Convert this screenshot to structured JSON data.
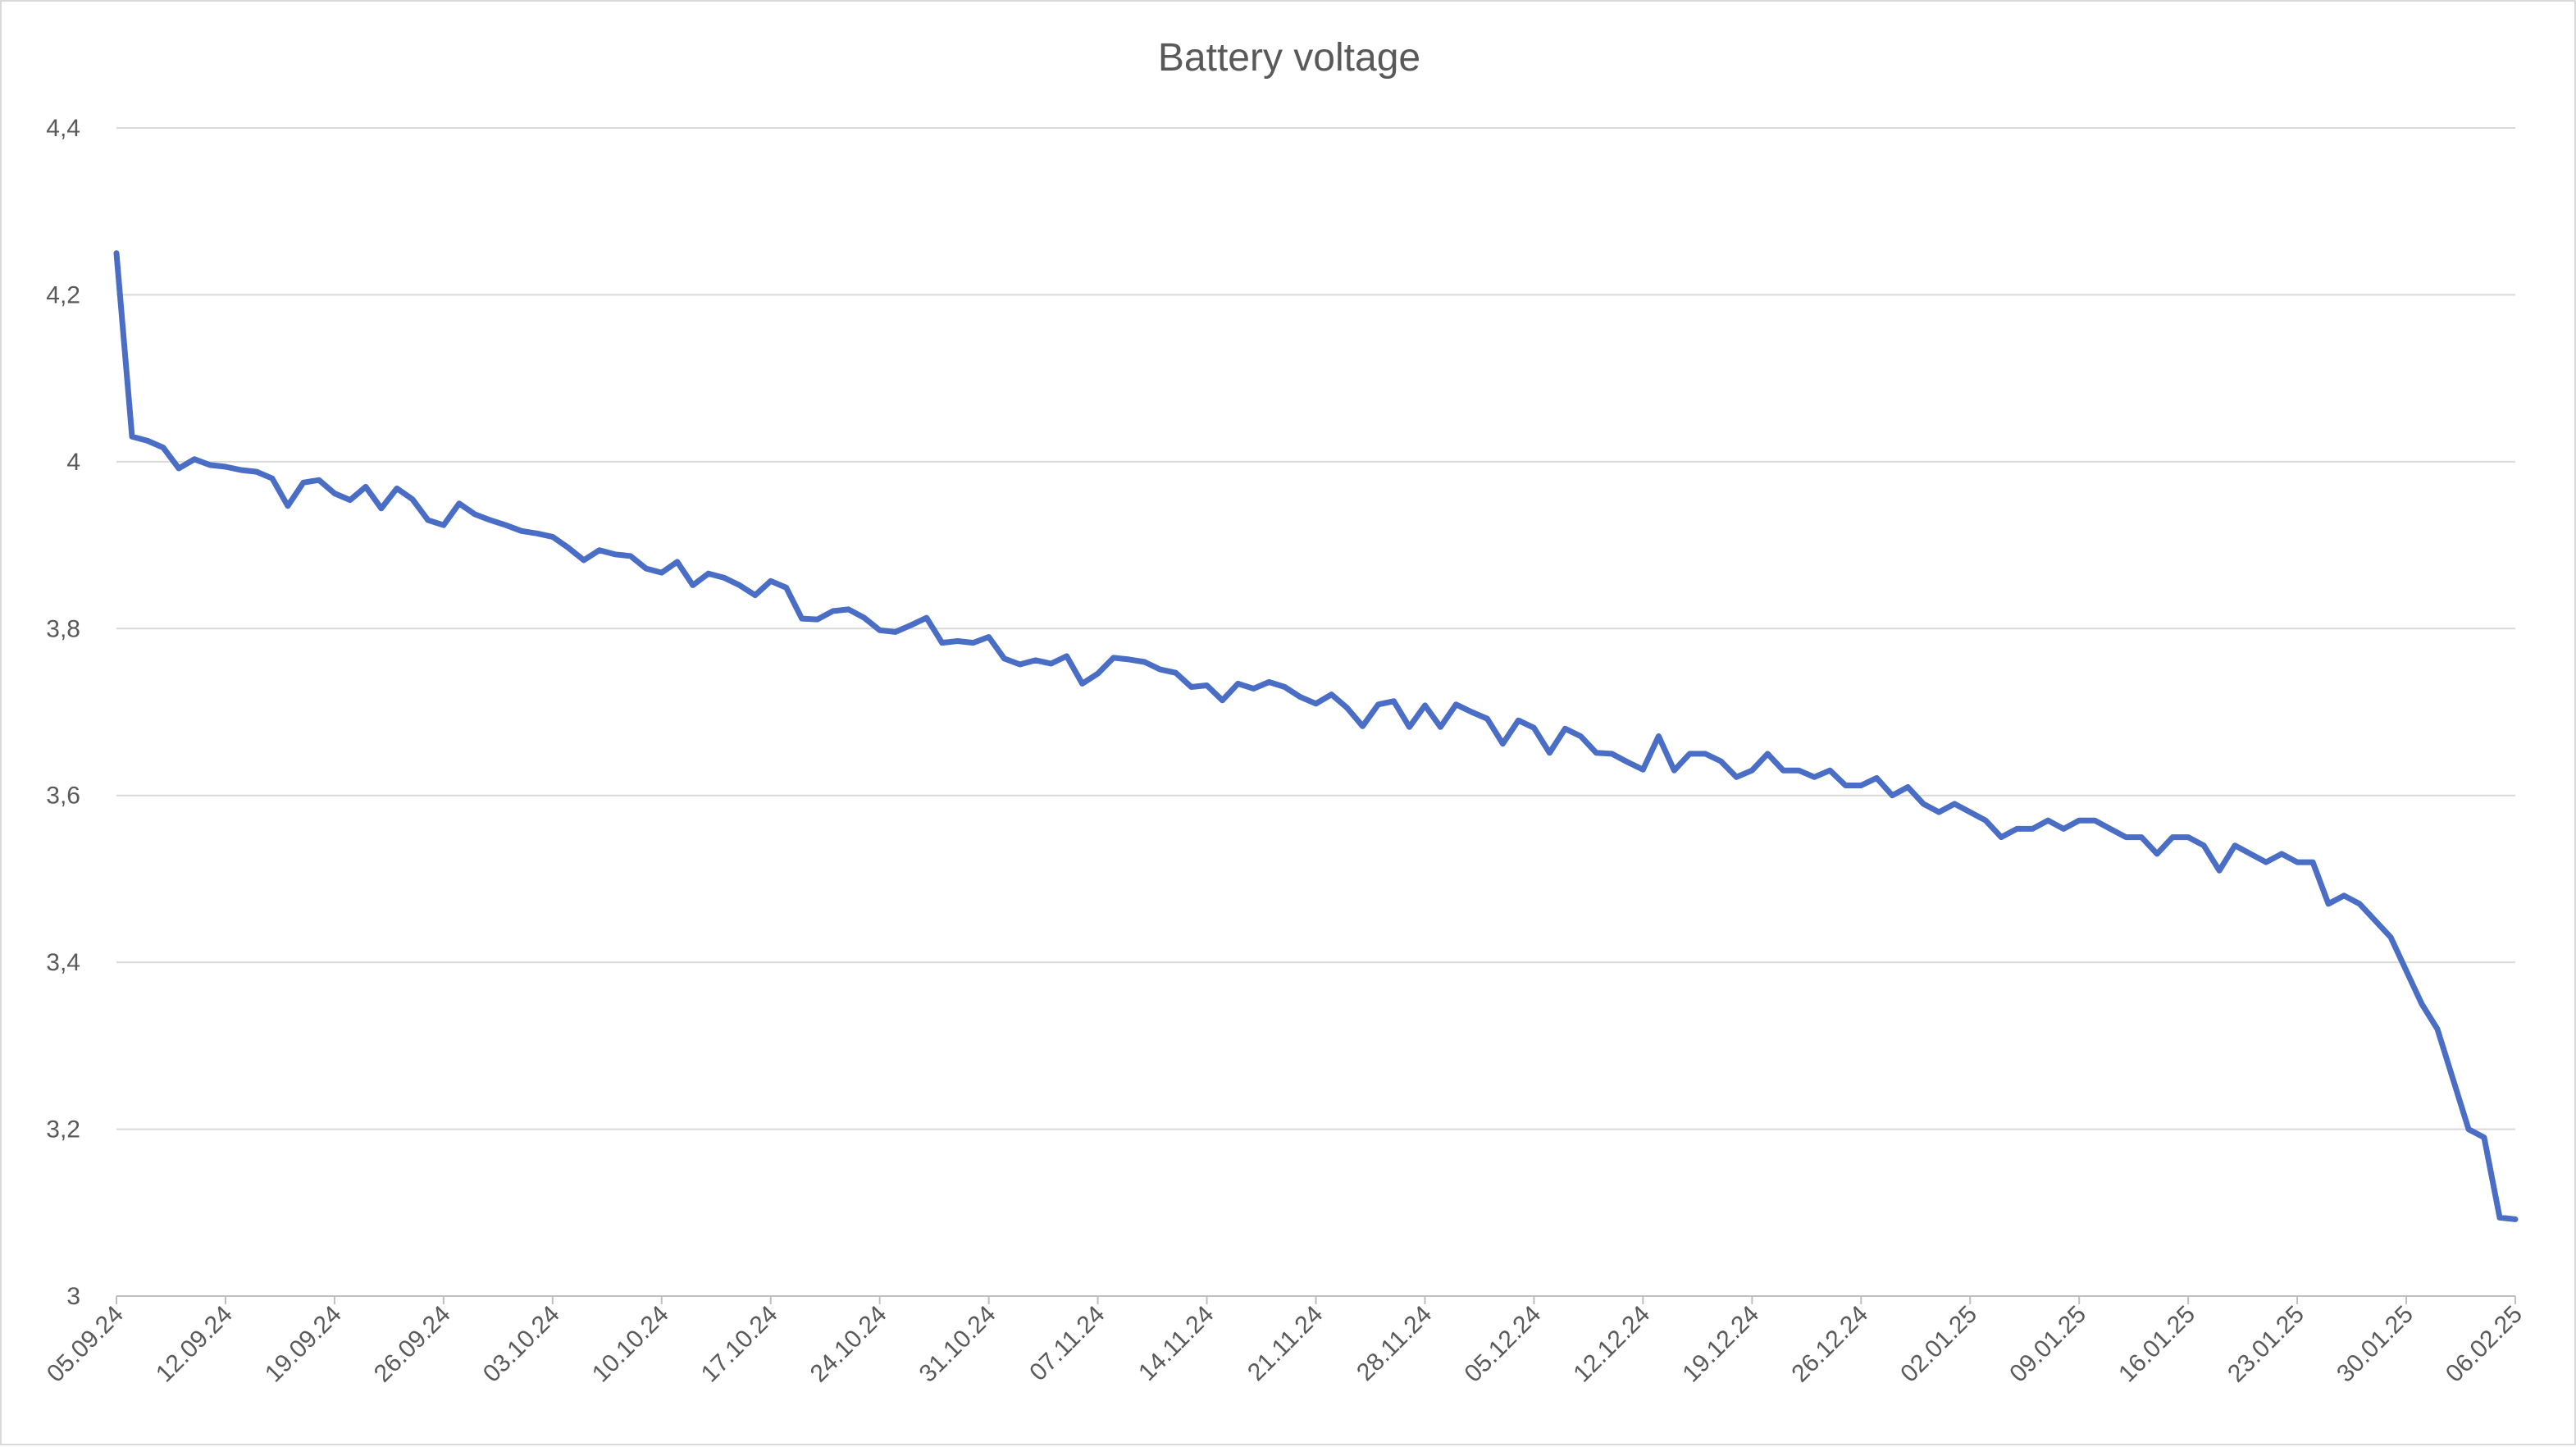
{
  "chart_data": {
    "type": "line",
    "title": "Battery voltage",
    "xlabel": "",
    "ylabel": "",
    "ylim": [
      3,
      4.4
    ],
    "yticks": [
      "3",
      "3,2",
      "3,4",
      "3,6",
      "3,8",
      "4",
      "4,2",
      "4,4"
    ],
    "ytick_values": [
      3.0,
      3.2,
      3.4,
      3.6,
      3.8,
      4.0,
      4.2,
      4.4
    ],
    "xlim": [
      "2024-09-05",
      "2025-02-06"
    ],
    "xticks": [
      "05.09.24",
      "12.09.24",
      "19.09.24",
      "26.09.24",
      "03.10.24",
      "10.10.24",
      "17.10.24",
      "24.10.24",
      "31.10.24",
      "07.11.24",
      "14.11.24",
      "21.11.24",
      "28.11.24",
      "05.12.24",
      "12.12.24",
      "19.12.24",
      "26.12.24",
      "02.01.25",
      "09.01.25",
      "16.01.25",
      "23.01.25",
      "30.01.25",
      "06.02.25"
    ],
    "xtick_dates": [
      "2024-09-05",
      "2024-09-12",
      "2024-09-19",
      "2024-09-26",
      "2024-10-03",
      "2024-10-10",
      "2024-10-17",
      "2024-10-24",
      "2024-10-31",
      "2024-11-07",
      "2024-11-14",
      "2024-11-21",
      "2024-11-28",
      "2024-12-05",
      "2024-12-12",
      "2024-12-19",
      "2024-12-26",
      "2025-01-02",
      "2025-01-09",
      "2025-01-16",
      "2025-01-23",
      "2025-01-30",
      "2025-02-06"
    ],
    "grid": true,
    "legend": "none",
    "series": [
      {
        "color": "#4a6ec5",
        "points": [
          [
            "2024-09-05",
            4.25
          ],
          [
            "2024-09-06",
            4.03
          ],
          [
            "2024-09-07",
            4.025
          ],
          [
            "2024-09-08",
            4.017
          ],
          [
            "2024-09-09",
            3.992
          ],
          [
            "2024-09-10",
            4.003
          ],
          [
            "2024-09-11",
            3.996
          ],
          [
            "2024-09-12",
            3.994
          ],
          [
            "2024-09-13",
            3.99
          ],
          [
            "2024-09-14",
            3.988
          ],
          [
            "2024-09-15",
            3.98
          ],
          [
            "2024-09-16",
            3.947
          ],
          [
            "2024-09-17",
            3.975
          ],
          [
            "2024-09-18",
            3.978
          ],
          [
            "2024-09-19",
            3.962
          ],
          [
            "2024-09-20",
            3.954
          ],
          [
            "2024-09-21",
            3.97
          ],
          [
            "2024-09-22",
            3.944
          ],
          [
            "2024-09-23",
            3.968
          ],
          [
            "2024-09-24",
            3.955
          ],
          [
            "2024-09-25",
            3.93
          ],
          [
            "2024-09-26",
            3.924
          ],
          [
            "2024-09-27",
            3.95
          ],
          [
            "2024-09-28",
            3.937
          ],
          [
            "2024-09-29",
            3.93
          ],
          [
            "2024-09-30",
            3.924
          ],
          [
            "2024-10-01",
            3.917
          ],
          [
            "2024-10-02",
            3.914
          ],
          [
            "2024-10-03",
            3.91
          ],
          [
            "2024-10-04",
            3.897
          ],
          [
            "2024-10-05",
            3.882
          ],
          [
            "2024-10-06",
            3.894
          ],
          [
            "2024-10-07",
            3.889
          ],
          [
            "2024-10-08",
            3.887
          ],
          [
            "2024-10-09",
            3.872
          ],
          [
            "2024-10-10",
            3.867
          ],
          [
            "2024-10-11",
            3.88
          ],
          [
            "2024-10-12",
            3.852
          ],
          [
            "2024-10-13",
            3.866
          ],
          [
            "2024-10-14",
            3.861
          ],
          [
            "2024-10-15",
            3.852
          ],
          [
            "2024-10-16",
            3.84
          ],
          [
            "2024-10-17",
            3.857
          ],
          [
            "2024-10-18",
            3.849
          ],
          [
            "2024-10-19",
            3.812
          ],
          [
            "2024-10-20",
            3.811
          ],
          [
            "2024-10-21",
            3.821
          ],
          [
            "2024-10-22",
            3.823
          ],
          [
            "2024-10-23",
            3.813
          ],
          [
            "2024-10-24",
            3.798
          ],
          [
            "2024-10-25",
            3.796
          ],
          [
            "2024-10-26",
            3.804
          ],
          [
            "2024-10-27",
            3.813
          ],
          [
            "2024-10-28",
            3.783
          ],
          [
            "2024-10-29",
            3.785
          ],
          [
            "2024-10-30",
            3.783
          ],
          [
            "2024-10-31",
            3.79
          ],
          [
            "2024-11-01",
            3.764
          ],
          [
            "2024-11-02",
            3.757
          ],
          [
            "2024-11-03",
            3.762
          ],
          [
            "2024-11-04",
            3.758
          ],
          [
            "2024-11-05",
            3.767
          ],
          [
            "2024-11-06",
            3.734
          ],
          [
            "2024-11-07",
            3.746
          ],
          [
            "2024-11-08",
            3.765
          ],
          [
            "2024-11-09",
            3.763
          ],
          [
            "2024-11-10",
            3.76
          ],
          [
            "2024-11-11",
            3.751
          ],
          [
            "2024-11-12",
            3.747
          ],
          [
            "2024-11-13",
            3.73
          ],
          [
            "2024-11-14",
            3.732
          ],
          [
            "2024-11-15",
            3.714
          ],
          [
            "2024-11-16",
            3.734
          ],
          [
            "2024-11-17",
            3.728
          ],
          [
            "2024-11-18",
            3.736
          ],
          [
            "2024-11-19",
            3.73
          ],
          [
            "2024-11-20",
            3.718
          ],
          [
            "2024-11-21",
            3.71
          ],
          [
            "2024-11-22",
            3.721
          ],
          [
            "2024-11-23",
            3.705
          ],
          [
            "2024-11-24",
            3.683
          ],
          [
            "2024-11-25",
            3.709
          ],
          [
            "2024-11-26",
            3.713
          ],
          [
            "2024-11-27",
            3.682
          ],
          [
            "2024-11-28",
            3.708
          ],
          [
            "2024-11-29",
            3.682
          ],
          [
            "2024-11-30",
            3.709
          ],
          [
            "2024-12-01",
            3.7
          ],
          [
            "2024-12-02",
            3.692
          ],
          [
            "2024-12-03",
            3.662
          ],
          [
            "2024-12-04",
            3.69
          ],
          [
            "2024-12-05",
            3.681
          ],
          [
            "2024-12-06",
            3.651
          ],
          [
            "2024-12-07",
            3.68
          ],
          [
            "2024-12-08",
            3.671
          ],
          [
            "2024-12-09",
            3.651
          ],
          [
            "2024-12-10",
            3.65
          ],
          [
            "2024-12-11",
            3.64
          ],
          [
            "2024-12-12",
            3.631
          ],
          [
            "2024-12-13",
            3.671
          ],
          [
            "2024-12-14",
            3.63
          ],
          [
            "2024-12-15",
            3.65
          ],
          [
            "2024-12-16",
            3.65
          ],
          [
            "2024-12-17",
            3.641
          ],
          [
            "2024-12-18",
            3.622
          ],
          [
            "2024-12-19",
            3.63
          ],
          [
            "2024-12-20",
            3.65
          ],
          [
            "2024-12-21",
            3.63
          ],
          [
            "2024-12-22",
            3.63
          ],
          [
            "2024-12-23",
            3.622
          ],
          [
            "2024-12-24",
            3.63
          ],
          [
            "2024-12-25",
            3.612
          ],
          [
            "2024-12-26",
            3.612
          ],
          [
            "2024-12-27",
            3.621
          ],
          [
            "2024-12-28",
            3.6
          ],
          [
            "2024-12-29",
            3.61
          ],
          [
            "2024-12-30",
            3.59
          ],
          [
            "2024-12-31",
            3.58
          ],
          [
            "2025-01-01",
            3.59
          ],
          [
            "2025-01-02",
            3.58
          ],
          [
            "2025-01-03",
            3.57
          ],
          [
            "2025-01-04",
            3.55
          ],
          [
            "2025-01-05",
            3.56
          ],
          [
            "2025-01-06",
            3.56
          ],
          [
            "2025-01-07",
            3.57
          ],
          [
            "2025-01-08",
            3.56
          ],
          [
            "2025-01-09",
            3.57
          ],
          [
            "2025-01-10",
            3.57
          ],
          [
            "2025-01-11",
            3.56
          ],
          [
            "2025-01-12",
            3.55
          ],
          [
            "2025-01-13",
            3.55
          ],
          [
            "2025-01-14",
            3.53
          ],
          [
            "2025-01-15",
            3.55
          ],
          [
            "2025-01-16",
            3.55
          ],
          [
            "2025-01-17",
            3.54
          ],
          [
            "2025-01-18",
            3.51
          ],
          [
            "2025-01-19",
            3.54
          ],
          [
            "2025-01-20",
            3.53
          ],
          [
            "2025-01-21",
            3.52
          ],
          [
            "2025-01-22",
            3.53
          ],
          [
            "2025-01-23",
            3.52
          ],
          [
            "2025-01-24",
            3.52
          ],
          [
            "2025-01-25",
            3.47
          ],
          [
            "2025-01-26",
            3.48
          ],
          [
            "2025-01-27",
            3.47
          ],
          [
            "2025-01-28",
            3.45
          ],
          [
            "2025-01-29",
            3.43
          ],
          [
            "2025-01-30",
            3.39
          ],
          [
            "2025-01-31",
            3.35
          ],
          [
            "2025-02-01",
            3.32
          ],
          [
            "2025-02-02",
            3.26
          ],
          [
            "2025-02-03",
            3.2
          ],
          [
            "2025-02-04",
            3.19
          ],
          [
            "2025-02-05",
            3.094
          ],
          [
            "2025-02-06",
            3.092
          ]
        ]
      }
    ]
  }
}
